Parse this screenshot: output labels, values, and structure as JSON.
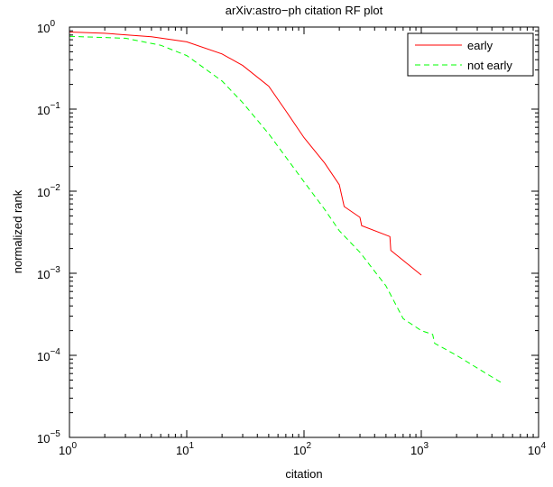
{
  "chart_data": {
    "type": "line",
    "title": "arXiv:astro−ph citation RF plot",
    "xlabel": "citation",
    "ylabel": "normalized rank",
    "x_scale": "log",
    "y_scale": "log",
    "xlim": [
      1,
      10000
    ],
    "ylim": [
      1e-05,
      1
    ],
    "x_ticks": [
      {
        "value": 1,
        "base": "10",
        "exp": "0"
      },
      {
        "value": 10,
        "base": "10",
        "exp": "1"
      },
      {
        "value": 100,
        "base": "10",
        "exp": "2"
      },
      {
        "value": 1000,
        "base": "10",
        "exp": "3"
      },
      {
        "value": 10000,
        "base": "10",
        "exp": "4"
      }
    ],
    "y_ticks": [
      {
        "value": 1,
        "base": "10",
        "exp": "0"
      },
      {
        "value": 0.1,
        "base": "10",
        "exp": "−1"
      },
      {
        "value": 0.01,
        "base": "10",
        "exp": "−2"
      },
      {
        "value": 0.001,
        "base": "10",
        "exp": "−3"
      },
      {
        "value": 0.0001,
        "base": "10",
        "exp": "−4"
      },
      {
        "value": 1e-05,
        "base": "10",
        "exp": "−5"
      }
    ],
    "grid": false,
    "legend_position": "top-right",
    "series": [
      {
        "name": "early",
        "color": "#ff0000",
        "style": "solid",
        "points": [
          [
            1,
            0.87
          ],
          [
            2,
            0.84
          ],
          [
            5,
            0.76
          ],
          [
            10,
            0.66
          ],
          [
            20,
            0.47
          ],
          [
            30,
            0.34
          ],
          [
            50,
            0.19
          ],
          [
            70,
            0.095
          ],
          [
            100,
            0.045
          ],
          [
            150,
            0.022
          ],
          [
            200,
            0.012
          ],
          [
            220,
            0.0065
          ],
          [
            300,
            0.0048
          ],
          [
            310,
            0.0038
          ],
          [
            540,
            0.0028
          ],
          [
            550,
            0.0019
          ],
          [
            1000,
            0.00095
          ]
        ]
      },
      {
        "name": "not early",
        "color": "#00ff00",
        "style": "dashed",
        "points": [
          [
            1,
            0.77
          ],
          [
            3,
            0.73
          ],
          [
            6,
            0.6
          ],
          [
            10,
            0.45
          ],
          [
            20,
            0.22
          ],
          [
            30,
            0.12
          ],
          [
            50,
            0.05
          ],
          [
            100,
            0.013
          ],
          [
            150,
            0.006
          ],
          [
            200,
            0.0033
          ],
          [
            300,
            0.0018
          ],
          [
            500,
            0.0007
          ],
          [
            700,
            0.00028
          ],
          [
            1000,
            0.0002
          ],
          [
            1250,
            0.00018
          ],
          [
            1300,
            0.00014
          ],
          [
            2000,
            0.0001
          ],
          [
            3000,
            7e-05
          ],
          [
            5000,
            4.5e-05
          ]
        ]
      }
    ]
  }
}
